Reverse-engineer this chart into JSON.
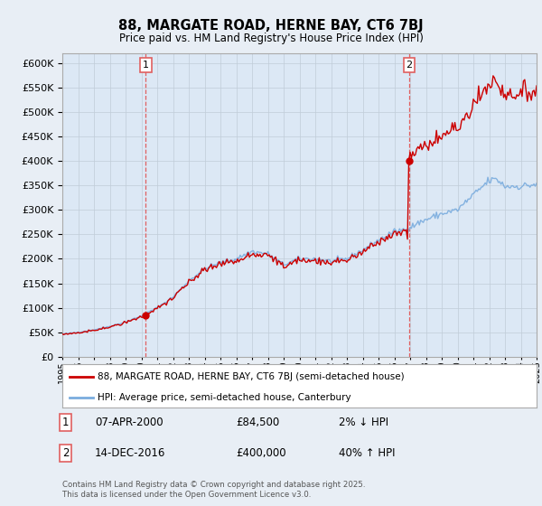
{
  "title": "88, MARGATE ROAD, HERNE BAY, CT6 7BJ",
  "subtitle": "Price paid vs. HM Land Registry's House Price Index (HPI)",
  "hpi_label": "HPI: Average price, semi-detached house, Canterbury",
  "property_label": "88, MARGATE ROAD, HERNE BAY, CT6 7BJ (semi-detached house)",
  "annotation1": {
    "number": "1",
    "date": "07-APR-2000",
    "price": "£84,500",
    "change": "2% ↓ HPI"
  },
  "annotation2": {
    "number": "2",
    "date": "14-DEC-2016",
    "price": "£400,000",
    "change": "40% ↑ HPI"
  },
  "footer": "Contains HM Land Registry data © Crown copyright and database right 2025.\nThis data is licensed under the Open Government Licence v3.0.",
  "ylim": [
    0,
    620000
  ],
  "yticks": [
    0,
    50000,
    100000,
    150000,
    200000,
    250000,
    300000,
    350000,
    400000,
    450000,
    500000,
    550000,
    600000
  ],
  "background_color": "#e8eef5",
  "plot_bg_color": "#dce8f5",
  "grid_color": "#c0ccd8",
  "red_line_color": "#cc0000",
  "blue_line_color": "#7aacde",
  "dashed_color": "#e06060",
  "marker1_year": 2000.27,
  "marker2_year": 2016.95,
  "sale1_price": 84500,
  "sale2_price": 400000,
  "xmin": 1995,
  "xmax": 2025
}
